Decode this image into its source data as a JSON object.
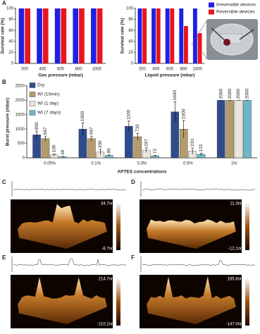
{
  "chart_data": [
    {
      "type": "bar",
      "panel": "A",
      "ylabel": "Survival rate (%)",
      "xlabel": "Gas pressure (mbar)",
      "categories": [
        "200",
        "400",
        "600",
        "800",
        "1000"
      ],
      "series": [
        {
          "color": "#1f1fe6",
          "values": [
            100,
            100,
            100,
            100,
            100
          ]
        },
        {
          "color": "#e8141e",
          "values": [
            100,
            100,
            100,
            100,
            100
          ]
        }
      ],
      "ylim": [
        0,
        100
      ],
      "yticks": [
        0,
        20,
        40,
        60,
        80,
        100
      ]
    },
    {
      "type": "bar",
      "ylabel": "Survival rate (%)",
      "xlabel": "Liquid pressure (mbar)",
      "categories": [
        "200",
        "400",
        "600",
        "800",
        "1000"
      ],
      "series": [
        {
          "name": "Irreversible devices",
          "color": "#1f1fe6",
          "values": [
            100,
            100,
            100,
            100,
            100
          ]
        },
        {
          "name": "Reversible devices",
          "color": "#e8141e",
          "values": [
            100,
            100,
            100,
            68,
            55
          ]
        }
      ],
      "ylim": [
        0,
        100
      ],
      "yticks": [
        0,
        20,
        40,
        60,
        80,
        100
      ],
      "legend": "upper right"
    },
    {
      "type": "bar",
      "panel": "B",
      "ylabel": "Burst pressure (mbar)",
      "xlabel": "APTES concentrations",
      "categories": [
        "0.05%",
        "0.1%",
        "0.3%",
        "0.5%",
        "1%"
      ],
      "series": [
        {
          "name": "Dry",
          "color": "#2e4c8c",
          "values": [
            800,
            1000,
            1100,
            1600,
            2000
          ],
          "errors": [
            130,
            220,
            180,
            350,
            0
          ]
        },
        {
          "name": "WI (10min)",
          "color": "#b39c6c",
          "values": [
            667,
            667,
            733,
            1000,
            2000
          ],
          "errors": [
            90,
            90,
            120,
            300,
            0
          ]
        },
        {
          "name": "WI (1 day)",
          "color": "#ebe6dc",
          "values": [
            100,
            200,
            267,
            233,
            2000
          ],
          "errors": [
            40,
            90,
            80,
            110,
            0
          ]
        },
        {
          "name": "WI (7 days)",
          "color": "#6fb6c6",
          "values": [
            38,
            85,
            72,
            122,
            2000
          ],
          "errors": [
            10,
            25,
            20,
            40,
            0
          ]
        }
      ],
      "ylim": [
        0,
        2500
      ],
      "yticks": [
        0,
        500,
        1000,
        1500,
        2000,
        2500
      ],
      "legend": "upper left"
    }
  ],
  "afm_panels": [
    {
      "label": "C",
      "max": "34.7nm",
      "min": "-8.7nm"
    },
    {
      "label": "D",
      "max": "11.3nm",
      "min": "-12.1nm"
    },
    {
      "label": "E",
      "max": "214.7nm",
      "min": "-110.1nm"
    },
    {
      "label": "F",
      "max": "185.8nm",
      "min": "-147.0nm"
    }
  ]
}
